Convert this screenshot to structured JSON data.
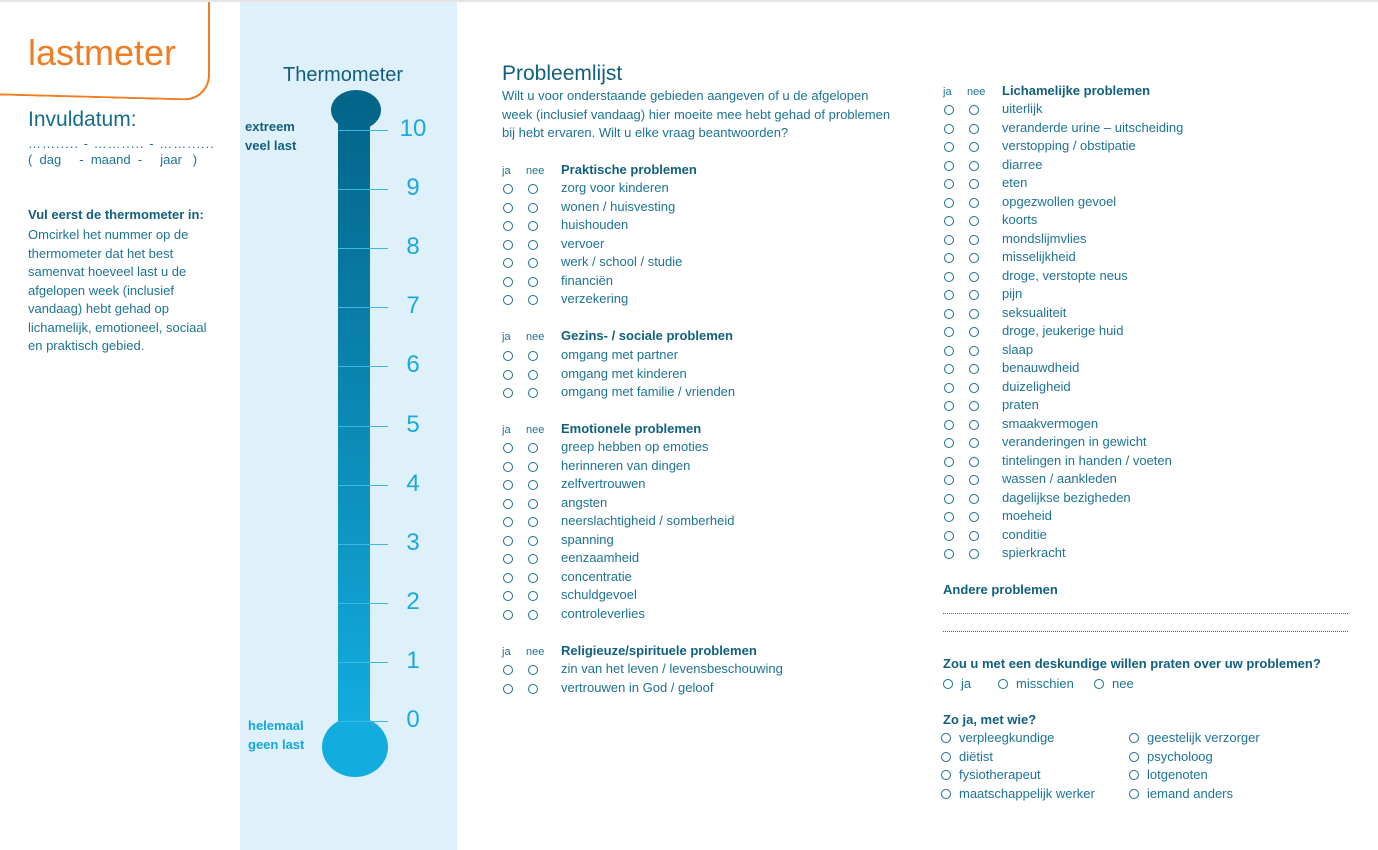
{
  "header": {
    "logo": "lastmeter",
    "date_label": "Invuldatum:",
    "date_dots": "……..... - ……..... - ……......",
    "date_parts": "(  dag     -  maand  -     jaar   )"
  },
  "instructions": {
    "title": "Vul eerst de thermometer in:",
    "text": "Omcirkel het nummer op de thermometer dat het best samenvat hoeveel last u de afgelopen week (inclusief vandaag) hebt gehad op lichamelijk, emotioneel, sociaal en praktisch gebied."
  },
  "thermometer": {
    "title": "Thermometer",
    "top_label": "extreem veel last",
    "bottom_label": "helemaal geen last",
    "scale": [
      "10",
      "9",
      "8",
      "7",
      "6",
      "5",
      "4",
      "3",
      "2",
      "1",
      "0"
    ]
  },
  "problem_list": {
    "title": "Probleemlijst",
    "intro": "Wilt u voor onderstaande gebieden aangeven of u de afgelopen week (inclusief vandaag) hier moeite mee hebt gehad of problemen bij hebt ervaren. Wilt u elke vraag beantwoorden?",
    "yes_label": "ja",
    "no_label": "nee",
    "sections": [
      {
        "title": "Praktische problemen",
        "items": [
          "zorg voor kinderen",
          "wonen / huisvesting",
          "huishouden",
          "vervoer",
          "werk / school / studie",
          "financiën",
          "verzekering"
        ]
      },
      {
        "title": "Gezins- / sociale problemen",
        "items": [
          "omgang met partner",
          "omgang met kinderen",
          "omgang met familie / vrienden"
        ]
      },
      {
        "title": "Emotionele problemen",
        "items": [
          "greep hebben op emoties",
          "herinneren van dingen",
          "zelfvertrouwen",
          "angsten",
          "neerslachtigheid / somberheid",
          "spanning",
          "eenzaamheid",
          "concentratie",
          "schuldgevoel",
          "controleverlies"
        ]
      },
      {
        "title": "Religieuze/spirituele problemen",
        "items": [
          "zin van het leven / levensbeschouwing",
          "vertrouwen in God / geloof"
        ]
      },
      {
        "title": "Lichamelijke problemen",
        "items": [
          "uiterlijk",
          "veranderde urine – uitscheiding",
          "verstopping / obstipatie",
          "diarree",
          "eten",
          "opgezwollen gevoel",
          "koorts",
          "mondslijmvlies",
          "misselijkheid",
          "droge, verstopte neus",
          "pijn",
          "seksualiteit",
          "droge, jeukerige huid",
          "slaap",
          "benauwdheid",
          "duizeligheid",
          "praten",
          "smaakvermogen",
          "veranderingen in gewicht",
          "tintelingen in handen / voeten",
          "wassen / aankleden",
          "dagelijkse bezigheden",
          "moeheid",
          "conditie",
          "spierkracht"
        ]
      }
    ]
  },
  "other": {
    "title": "Andere problemen"
  },
  "expert": {
    "question": "Zou u met een deskundige willen praten over uw problemen?",
    "options": [
      "ja",
      "misschien",
      "nee"
    ]
  },
  "with_whom": {
    "question": "Zo ja, met wie?",
    "col1": [
      "verpleegkundige",
      "diëtist",
      "fysiotherapeut",
      "maatschappelijk werker"
    ],
    "col2": [
      "geestelijk verzorger",
      "psycholoog",
      "lotgenoten",
      "iemand anders"
    ]
  },
  "colors": {
    "accent": "#f07d22",
    "text": "#1d7393",
    "panel": "#def0fa",
    "thermo_top": "#03658a",
    "thermo_bottom": "#13acdf"
  }
}
